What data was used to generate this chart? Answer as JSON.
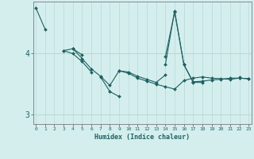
{
  "title": "",
  "xlabel": "Humidex (Indice chaleur)",
  "ylabel": "",
  "bg_color": "#d4eeee",
  "grid_color_v": "#b8d8d8",
  "grid_color_h": "#c0d8d0",
  "line_color": "#206060",
  "x_ticks": [
    0,
    1,
    2,
    3,
    4,
    5,
    6,
    7,
    8,
    9,
    10,
    11,
    12,
    13,
    14,
    15,
    16,
    17,
    18,
    19,
    20,
    21,
    22,
    23
  ],
  "y_ticks": [
    3,
    4
  ],
  "ylim": [
    2.85,
    4.85
  ],
  "xlim": [
    -0.3,
    23.3
  ],
  "series": [
    [
      4.75,
      4.4,
      null,
      4.05,
      4.0,
      3.87,
      3.7,
      null,
      null,
      null,
      null,
      null,
      null,
      null,
      null,
      null,
      null,
      null,
      null,
      null,
      null,
      null,
      null,
      null
    ],
    [
      null,
      null,
      null,
      4.05,
      4.08,
      3.92,
      3.75,
      3.63,
      3.48,
      3.72,
      3.68,
      3.6,
      3.55,
      3.5,
      3.46,
      3.42,
      3.56,
      3.6,
      3.62,
      3.6,
      3.59,
      3.58,
      3.6,
      3.59
    ],
    [
      null,
      null,
      null,
      null,
      4.08,
      3.98,
      null,
      3.62,
      3.38,
      3.3,
      null,
      null,
      null,
      null,
      3.82,
      4.7,
      3.82,
      3.53,
      3.53,
      null,
      null,
      null,
      3.62,
      null
    ],
    [
      null,
      null,
      null,
      null,
      null,
      null,
      null,
      null,
      null,
      3.72,
      3.7,
      3.63,
      3.58,
      3.53,
      3.65,
      null,
      null,
      3.54,
      3.55,
      3.57,
      3.58,
      3.6,
      3.6,
      3.59
    ],
    [
      null,
      null,
      null,
      null,
      null,
      null,
      null,
      null,
      null,
      null,
      null,
      null,
      null,
      null,
      3.95,
      4.68,
      3.82,
      3.54,
      null,
      null,
      null,
      null,
      null,
      null
    ]
  ]
}
